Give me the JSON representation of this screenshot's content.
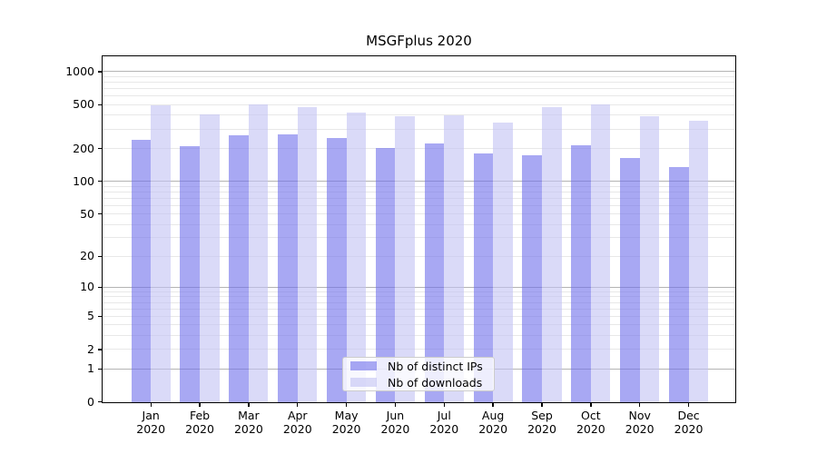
{
  "title": "MSGFplus 2020",
  "chart_data": {
    "type": "bar",
    "title": "MSGFplus 2020",
    "xlabel": "",
    "ylabel": "",
    "yscale": "log1p",
    "ylim": [
      0,
      1400
    ],
    "categories": [
      "Jan",
      "Feb",
      "Mar",
      "Apr",
      "May",
      "Jun",
      "Jul",
      "Aug",
      "Sep",
      "Oct",
      "Nov",
      "Dec"
    ],
    "year_line": "2020",
    "series": [
      {
        "name": "Nb of distinct IPs",
        "color": "rgba(110,110,235,0.6)",
        "values": [
          240,
          210,
          265,
          270,
          250,
          205,
          225,
          180,
          175,
          215,
          165,
          135
        ]
      },
      {
        "name": "Nb of downloads",
        "color": "rgba(193,193,243,0.6)",
        "values": [
          500,
          410,
          505,
          475,
          425,
          395,
          405,
          350,
          480,
          510,
          395,
          360
        ]
      }
    ],
    "yticks": [
      0,
      1,
      2,
      5,
      10,
      20,
      50,
      100,
      200,
      500,
      1000
    ],
    "grid": {
      "major_at": [
        1,
        10,
        100,
        1000
      ],
      "minor_at": [
        2,
        3,
        4,
        5,
        6,
        7,
        8,
        9,
        20,
        30,
        40,
        50,
        60,
        70,
        80,
        90,
        200,
        300,
        400,
        500,
        600,
        700,
        800,
        900
      ],
      "major_color": "#b4b4b4",
      "minor_color": "#e8e8e8"
    },
    "legend_position": "lower center"
  },
  "colors": {
    "spine": "#000000",
    "background": "#ffffff",
    "bar_distinct_ips": "rgba(110,110,235,0.6)",
    "bar_downloads": "rgba(193,193,243,0.6)"
  }
}
